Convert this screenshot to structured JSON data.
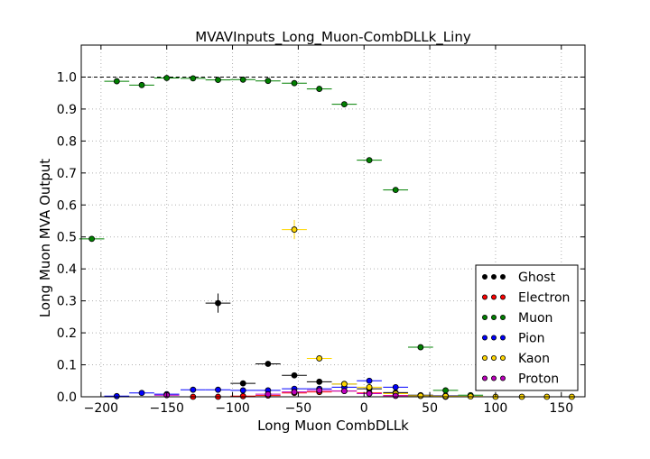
{
  "chart_data": {
    "type": "scatter",
    "title": "MVAVInputs_Long_Muon-CombDLLk_Liny",
    "xlabel": "Long Muon CombDLLk",
    "ylabel": "Long Muon MVA Output",
    "xlim": [
      -215,
      168
    ],
    "ylim": [
      0.0,
      1.1
    ],
    "xticks": [
      -200,
      -150,
      -100,
      -50,
      0,
      50,
      100,
      150
    ],
    "yticks": [
      0.0,
      0.1,
      0.2,
      0.3,
      0.4,
      0.5,
      0.6,
      0.7,
      0.8,
      0.9,
      1.0
    ],
    "grid": true,
    "reference_line": 1.0,
    "legend_position": "lower-right",
    "colors": {
      "Ghost": "#000000",
      "Electron": "#ff0000",
      "Muon": "#008000",
      "Pion": "#0000ff",
      "Kaon": "#ffd700",
      "Proton": "#bf00bf"
    },
    "series": [
      {
        "name": "Ghost",
        "points": [
          {
            "x": -111,
            "y": 0.293,
            "xerr": 9.5,
            "yerr": 0.03
          },
          {
            "x": -92,
            "y": 0.042,
            "xerr": 9.5,
            "yerr": 0.004
          },
          {
            "x": -73,
            "y": 0.103,
            "xerr": 9.5,
            "yerr": 0.004
          },
          {
            "x": -53,
            "y": 0.067,
            "xerr": 9.5,
            "yerr": 0.003
          },
          {
            "x": -34,
            "y": 0.047,
            "xerr": 9.5,
            "yerr": 0.002
          },
          {
            "x": -15,
            "y": 0.04,
            "xerr": 9.5,
            "yerr": 0.002
          },
          {
            "x": 4,
            "y": 0.025,
            "xerr": 9.5,
            "yerr": 0.002
          },
          {
            "x": 24,
            "y": 0.013,
            "xerr": 9.5,
            "yerr": 0.002
          },
          {
            "x": 43,
            "y": 0.005,
            "xerr": 9.5,
            "yerr": 0.001
          },
          {
            "x": 62,
            "y": 0.003,
            "xerr": 9.5,
            "yerr": 0.001
          }
        ]
      },
      {
        "name": "Electron",
        "points": [
          {
            "x": -130,
            "y": 0.0,
            "xerr": 9.5,
            "yerr": 0.001
          },
          {
            "x": -111,
            "y": 0.0,
            "xerr": 9.5,
            "yerr": 0.001
          },
          {
            "x": -92,
            "y": 0.002,
            "xerr": 9.5,
            "yerr": 0.001
          },
          {
            "x": -73,
            "y": 0.004,
            "xerr": 9.5,
            "yerr": 0.001
          },
          {
            "x": -53,
            "y": 0.012,
            "xerr": 9.5,
            "yerr": 0.002
          },
          {
            "x": -34,
            "y": 0.015,
            "xerr": 9.5,
            "yerr": 0.002
          },
          {
            "x": -15,
            "y": 0.018,
            "xerr": 9.5,
            "yerr": 0.002
          },
          {
            "x": 4,
            "y": 0.012,
            "xerr": 9.5,
            "yerr": 0.002
          },
          {
            "x": 24,
            "y": 0.004,
            "xerr": 9.5,
            "yerr": 0.001
          },
          {
            "x": 62,
            "y": 0.0,
            "xerr": 9.5,
            "yerr": 0.001
          }
        ]
      },
      {
        "name": "Muon",
        "points": [
          {
            "x": -207,
            "y": 0.494,
            "xerr": 9.5,
            "yerr": 0.004
          },
          {
            "x": -188,
            "y": 0.987,
            "xerr": 9.5,
            "yerr": 0.003
          },
          {
            "x": -169,
            "y": 0.975,
            "xerr": 9.5,
            "yerr": 0.003
          },
          {
            "x": -150,
            "y": 0.997,
            "xerr": 9.5,
            "yerr": 0.002
          },
          {
            "x": -130,
            "y": 0.996,
            "xerr": 9.5,
            "yerr": 0.002
          },
          {
            "x": -111,
            "y": 0.991,
            "xerr": 9.5,
            "yerr": 0.002
          },
          {
            "x": -92,
            "y": 0.992,
            "xerr": 9.5,
            "yerr": 0.002
          },
          {
            "x": -73,
            "y": 0.988,
            "xerr": 9.5,
            "yerr": 0.002
          },
          {
            "x": -53,
            "y": 0.981,
            "xerr": 9.5,
            "yerr": 0.002
          },
          {
            "x": -34,
            "y": 0.963,
            "xerr": 9.5,
            "yerr": 0.003
          },
          {
            "x": -15,
            "y": 0.915,
            "xerr": 9.5,
            "yerr": 0.003
          },
          {
            "x": 4,
            "y": 0.74,
            "xerr": 9.5,
            "yerr": 0.004
          },
          {
            "x": 24,
            "y": 0.647,
            "xerr": 9.5,
            "yerr": 0.004
          },
          {
            "x": 43,
            "y": 0.155,
            "xerr": 9.5,
            "yerr": 0.004
          },
          {
            "x": 62,
            "y": 0.02,
            "xerr": 9.5,
            "yerr": 0.003
          },
          {
            "x": 81,
            "y": 0.005,
            "xerr": 9.5,
            "yerr": 0.002
          }
        ]
      },
      {
        "name": "Pion",
        "points": [
          {
            "x": -188,
            "y": 0.002,
            "xerr": 9.5,
            "yerr": 0.001
          },
          {
            "x": -169,
            "y": 0.012,
            "xerr": 9.5,
            "yerr": 0.002
          },
          {
            "x": -150,
            "y": 0.008,
            "xerr": 9.5,
            "yerr": 0.002
          },
          {
            "x": -130,
            "y": 0.022,
            "xerr": 9.5,
            "yerr": 0.002
          },
          {
            "x": -111,
            "y": 0.022,
            "xerr": 9.5,
            "yerr": 0.002
          },
          {
            "x": -92,
            "y": 0.02,
            "xerr": 9.5,
            "yerr": 0.002
          },
          {
            "x": -73,
            "y": 0.02,
            "xerr": 9.5,
            "yerr": 0.002
          },
          {
            "x": -53,
            "y": 0.025,
            "xerr": 9.5,
            "yerr": 0.002
          },
          {
            "x": -34,
            "y": 0.025,
            "xerr": 9.5,
            "yerr": 0.002
          },
          {
            "x": -15,
            "y": 0.03,
            "xerr": 9.5,
            "yerr": 0.002
          },
          {
            "x": 4,
            "y": 0.05,
            "xerr": 9.5,
            "yerr": 0.003
          },
          {
            "x": 24,
            "y": 0.03,
            "xerr": 9.5,
            "yerr": 0.002
          },
          {
            "x": 43,
            "y": 0.003,
            "xerr": 9.5,
            "yerr": 0.001
          },
          {
            "x": 62,
            "y": 0.003,
            "xerr": 9.5,
            "yerr": 0.001
          }
        ]
      },
      {
        "name": "Kaon",
        "points": [
          {
            "x": -53,
            "y": 0.523,
            "xerr": 9.5,
            "yerr": 0.03
          },
          {
            "x": -34,
            "y": 0.12,
            "xerr": 9.5,
            "yerr": 0.004
          },
          {
            "x": -15,
            "y": 0.04,
            "xerr": 9.5,
            "yerr": 0.002
          },
          {
            "x": 4,
            "y": 0.03,
            "xerr": 9.5,
            "yerr": 0.002
          },
          {
            "x": 24,
            "y": 0.01,
            "xerr": 9.5,
            "yerr": 0.001
          },
          {
            "x": 43,
            "y": 0.003,
            "xerr": 9.5,
            "yerr": 0.001
          },
          {
            "x": 62,
            "y": 0.002,
            "xerr": 9.5,
            "yerr": 0.001
          },
          {
            "x": 81,
            "y": 0.001,
            "xerr": 9.5,
            "yerr": 0.001
          },
          {
            "x": 100,
            "y": 0.0,
            "xerr": 9.5,
            "yerr": 0.001
          },
          {
            "x": 120,
            "y": 0.0,
            "xerr": 9.5,
            "yerr": 0.001
          },
          {
            "x": 139,
            "y": 0.0,
            "xerr": 9.5,
            "yerr": 0.001
          },
          {
            "x": 158,
            "y": 0.0,
            "xerr": 9.5,
            "yerr": 0.001
          }
        ]
      },
      {
        "name": "Proton",
        "points": [
          {
            "x": -150,
            "y": 0.005,
            "xerr": 9.5,
            "yerr": 0.001
          },
          {
            "x": -73,
            "y": 0.008,
            "xerr": 9.5,
            "yerr": 0.002
          },
          {
            "x": -53,
            "y": 0.015,
            "xerr": 9.5,
            "yerr": 0.002
          },
          {
            "x": -34,
            "y": 0.02,
            "xerr": 9.5,
            "yerr": 0.002
          },
          {
            "x": -15,
            "y": 0.018,
            "xerr": 9.5,
            "yerr": 0.002
          },
          {
            "x": 4,
            "y": 0.01,
            "xerr": 9.5,
            "yerr": 0.002
          },
          {
            "x": 24,
            "y": 0.003,
            "xerr": 9.5,
            "yerr": 0.001
          }
        ]
      }
    ]
  }
}
